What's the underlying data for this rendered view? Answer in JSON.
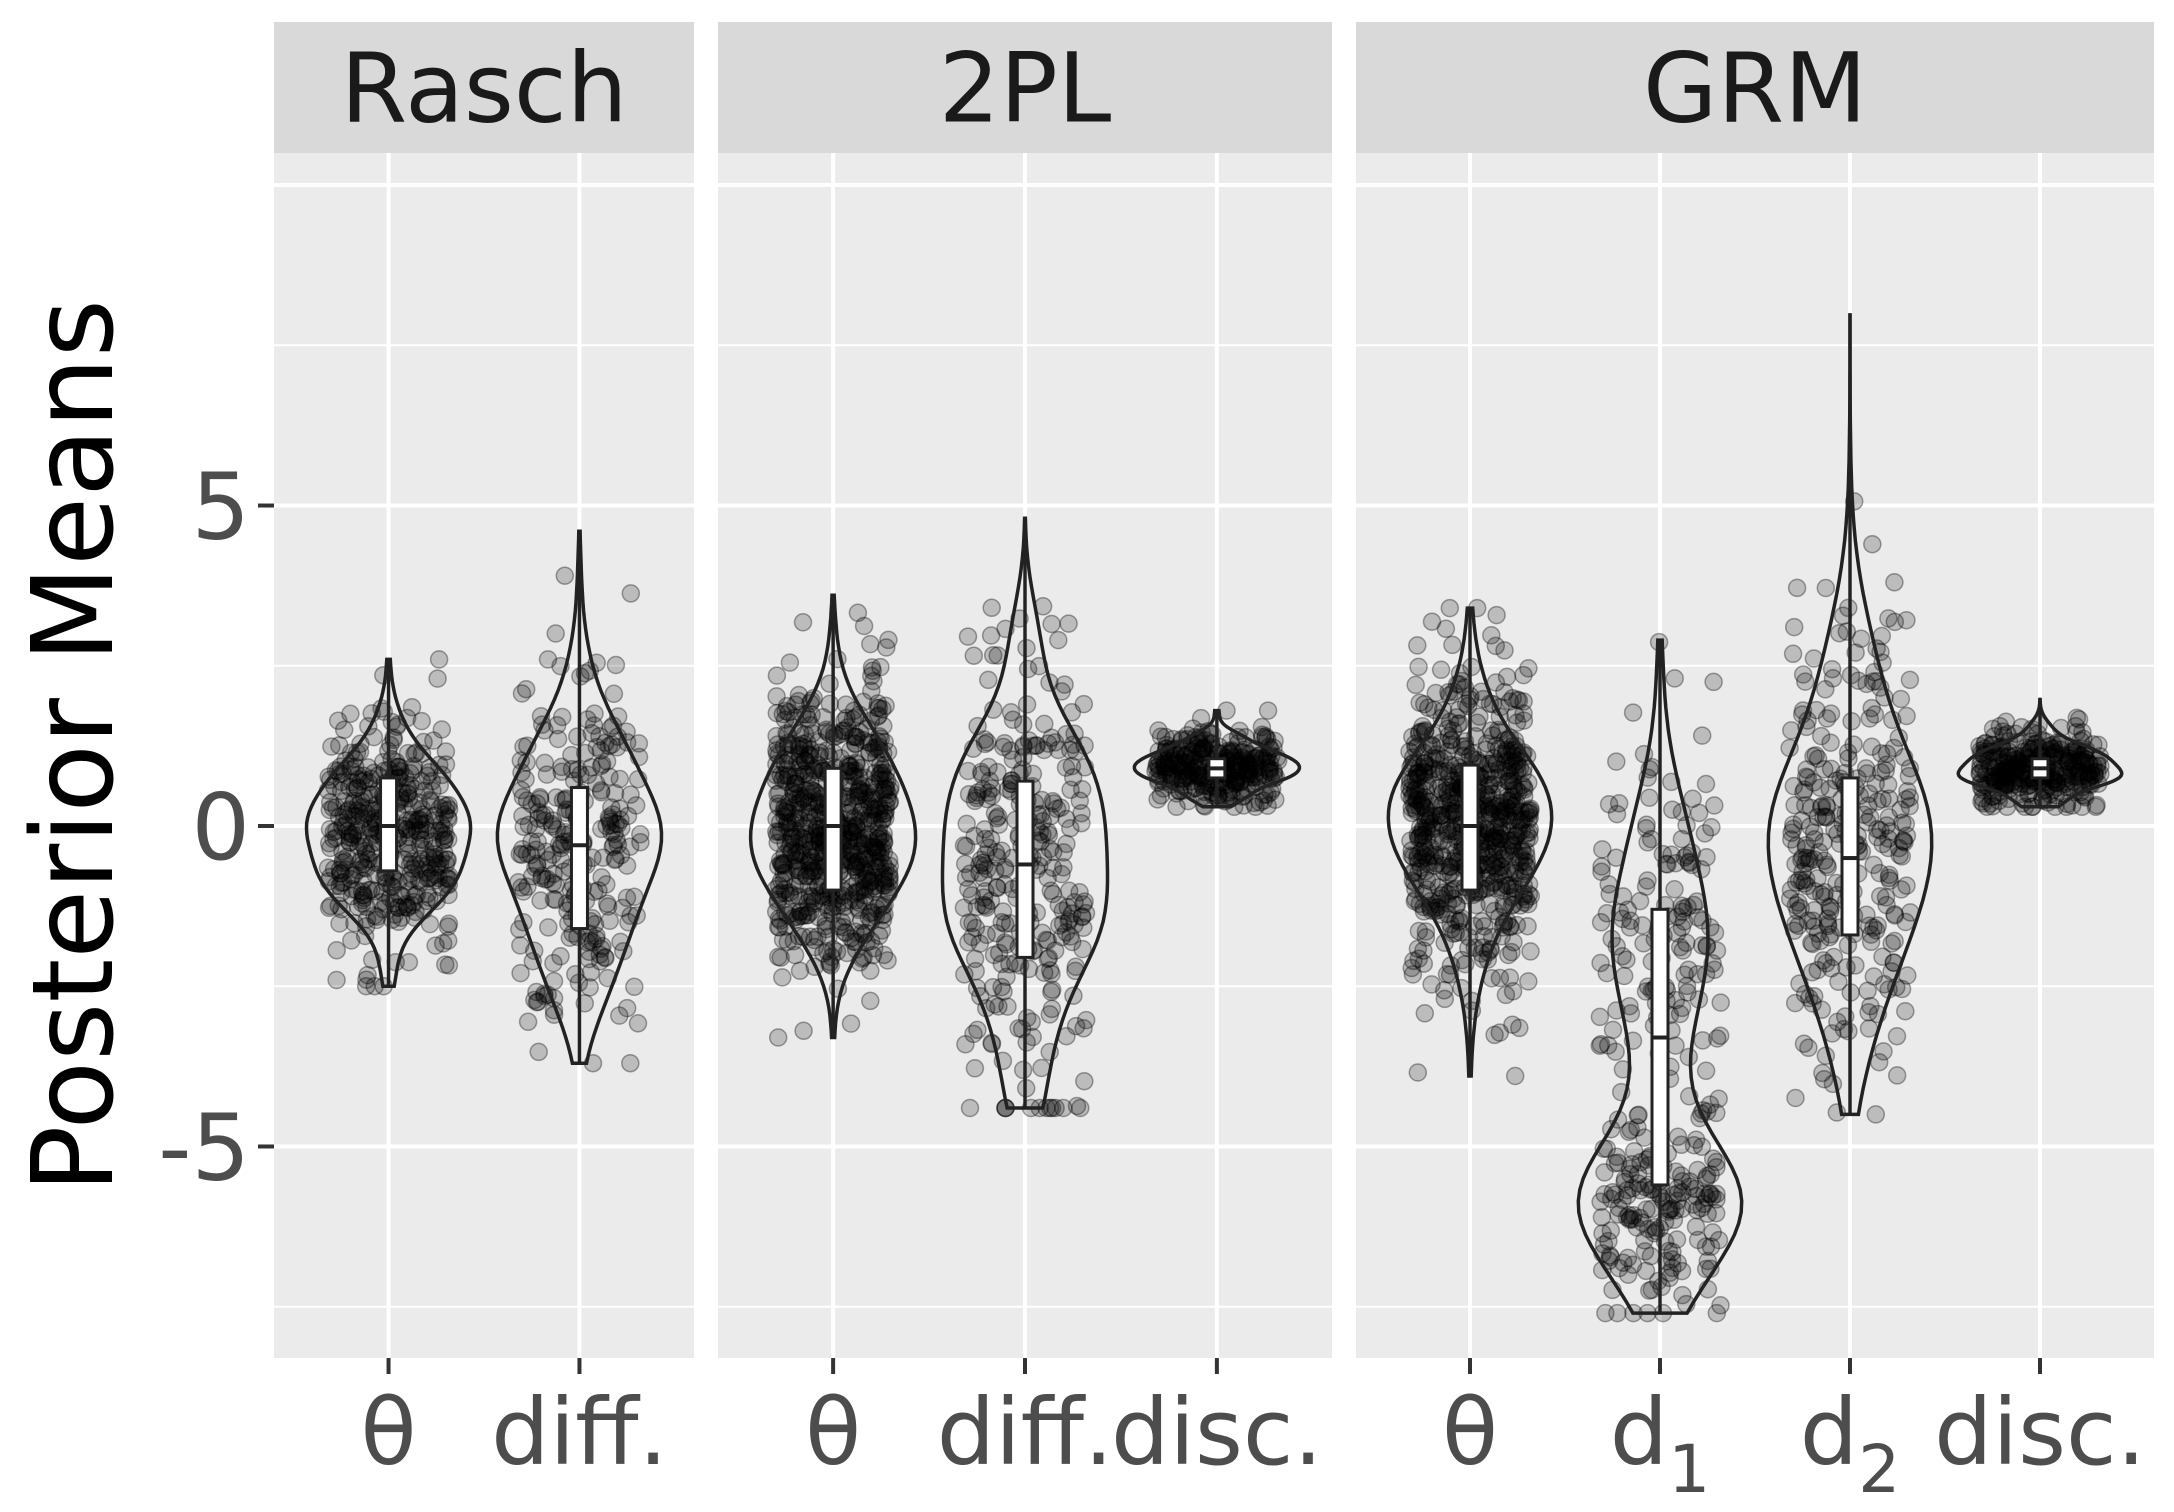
{
  "chart_data": {
    "type": "violin",
    "ylabel": "Posterior Means",
    "ylim": [
      -8.3,
      10.5
    ],
    "yticks": [
      -5,
      0,
      5
    ],
    "ytick_labels": [
      "-5",
      "0",
      "5"
    ],
    "grid": true,
    "panels": [
      {
        "title": "Rasch",
        "categories": [
          {
            "label": "θ",
            "sub": "",
            "n": 420,
            "spread": 0.32,
            "min": -2.5,
            "max": 2.6,
            "q1": -0.7,
            "median": 0.0,
            "q3": 0.75,
            "shape": "normal",
            "mean": -0.1,
            "sd": 0.95
          },
          {
            "label": "diff.",
            "sub": "",
            "n": 260,
            "spread": 0.32,
            "min": -3.7,
            "max": 4.6,
            "q1": -1.6,
            "median": -0.3,
            "q3": 0.6,
            "shape": "normal",
            "mean": -0.3,
            "sd": 1.5
          }
        ]
      },
      {
        "title": "2PL",
        "categories": [
          {
            "label": "θ",
            "sub": "",
            "n": 700,
            "spread": 0.3,
            "min": -3.3,
            "max": 3.6,
            "q1": -1.0,
            "median": 0.0,
            "q3": 0.9,
            "shape": "normal",
            "mean": 0.0,
            "sd": 1.1
          },
          {
            "label": "diff.",
            "sub": "",
            "n": 300,
            "spread": 0.32,
            "min": -4.4,
            "max": 4.8,
            "q1": -2.05,
            "median": -0.6,
            "q3": 0.7,
            "shape": "normal",
            "mean": -0.6,
            "sd": 1.8
          },
          {
            "label": "disc.",
            "sub": "",
            "n": 300,
            "spread": 0.32,
            "min": 0.3,
            "max": 1.8,
            "q1": 0.75,
            "median": 0.9,
            "q3": 1.05,
            "shape": "normal",
            "mean": 0.9,
            "sd": 0.3
          }
        ]
      },
      {
        "title": "GRM",
        "categories": [
          {
            "label": "θ",
            "sub": "",
            "n": 700,
            "spread": 0.32,
            "min": -3.9,
            "max": 3.4,
            "q1": -1.0,
            "median": 0.0,
            "q3": 0.95,
            "shape": "normal",
            "mean": 0.0,
            "sd": 1.2
          },
          {
            "label": "d",
            "sub": "1",
            "n": 320,
            "spread": 0.32,
            "min": -7.6,
            "max": 2.9,
            "q1": -5.6,
            "median": -3.3,
            "q3": -1.3,
            "shape": "bimodal",
            "mean": -3.5,
            "sd": 2.5
          },
          {
            "label": "d",
            "sub": "2",
            "n": 300,
            "spread": 0.32,
            "min": -4.5,
            "max": 8.0,
            "q1": -1.7,
            "median": -0.5,
            "q3": 0.75,
            "shape": "normal",
            "mean": -0.3,
            "sd": 1.7
          },
          {
            "label": "disc.",
            "sub": "",
            "n": 320,
            "spread": 0.32,
            "min": 0.3,
            "max": 2.0,
            "q1": 0.75,
            "median": 0.9,
            "q3": 1.05,
            "shape": "normal",
            "mean": 0.9,
            "sd": 0.3
          }
        ]
      }
    ]
  }
}
